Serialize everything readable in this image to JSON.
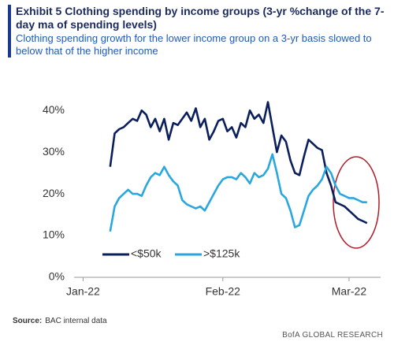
{
  "chart_data": {
    "type": "line",
    "title": "Exhibit 5 Clothing spending by income groups (3-yr %change of the 7-day ma of spending levels)",
    "subtitle": "Clothing spending growth for the lower income group on a 3-yr basis slowed to below that of the higher income",
    "source_label": "Source:",
    "source": "BAC internal data",
    "footer": "BofA GLOBAL RESEARCH",
    "x": [
      6,
      7,
      8,
      9,
      10,
      11,
      12,
      13,
      14,
      15,
      16,
      17,
      18,
      19,
      20,
      21,
      22,
      23,
      24,
      25,
      26,
      27,
      28,
      29,
      30,
      31,
      32,
      33,
      34,
      35,
      36,
      37,
      38,
      39,
      40,
      41,
      42,
      43,
      44,
      45,
      46,
      47,
      48,
      49,
      50,
      51,
      52,
      53,
      54,
      55,
      56,
      57,
      58,
      59,
      60,
      61,
      62,
      63
    ],
    "series": [
      {
        "name": "<$50k",
        "color": "#0b1f5c",
        "values": [
          26.5,
          34.5,
          35.5,
          36,
          37,
          38,
          37.5,
          40,
          39,
          36,
          38,
          35,
          38,
          33,
          37,
          36.5,
          38,
          39.5,
          37.5,
          40.5,
          36,
          38,
          33,
          35,
          37.5,
          38,
          35,
          36,
          33.5,
          37,
          36,
          40,
          38,
          39,
          37,
          42,
          36,
          30,
          34,
          32.5,
          28,
          25,
          24.5,
          29,
          33,
          32,
          31,
          30.5,
          25,
          22,
          18,
          17.5,
          17,
          16,
          15,
          14,
          13.5,
          13
        ]
      },
      {
        "name": ">$125k",
        "color": "#2aa7df",
        "values": [
          11,
          17,
          19,
          20,
          21,
          20,
          20,
          19.5,
          22,
          24,
          25,
          24.5,
          26.5,
          24.5,
          23,
          22,
          18.5,
          17.5,
          17,
          16.5,
          17,
          16,
          18,
          20,
          22,
          23.5,
          24,
          24,
          23.5,
          25,
          24,
          22.5,
          25,
          24,
          24.5,
          26,
          29.5,
          25,
          20,
          19,
          16,
          12,
          12.5,
          16,
          19.5,
          21,
          22,
          23.5,
          26.5,
          25,
          22,
          20,
          19.5,
          19,
          19,
          18.5,
          18,
          18
        ]
      }
    ],
    "xlim": [
      -2,
      66
    ],
    "xticks": [
      {
        "value": 0,
        "label": "Jan-22"
      },
      {
        "value": 31,
        "label": "Feb-22"
      },
      {
        "value": 59,
        "label": "Mar-22"
      }
    ],
    "ylim": [
      0,
      44
    ],
    "yticks": [
      {
        "value": 0,
        "label": "0%"
      },
      {
        "value": 10,
        "label": "10%"
      },
      {
        "value": 20,
        "label": "20%"
      },
      {
        "value": 30,
        "label": "30%"
      },
      {
        "value": 40,
        "label": "40%"
      }
    ],
    "grid": false,
    "legend": "lower-left"
  }
}
